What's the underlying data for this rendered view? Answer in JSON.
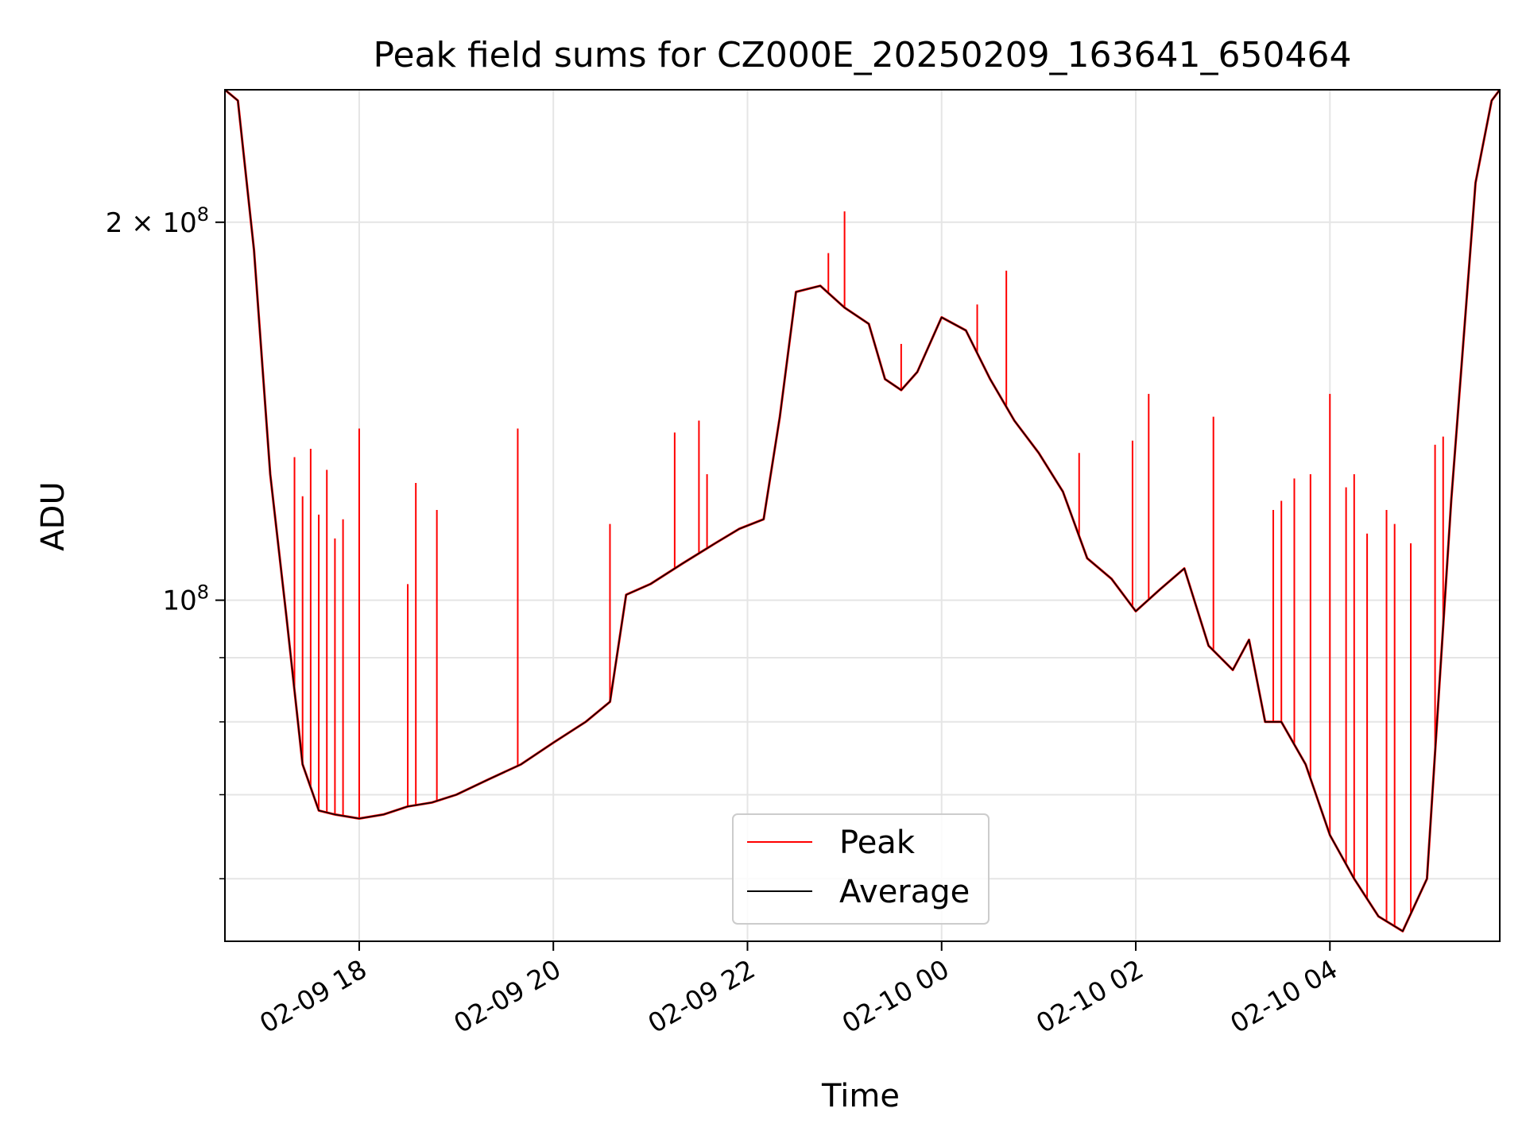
{
  "chart_data": {
    "type": "line",
    "title": "Peak field sums for CZ000E_20250209_163641_650464",
    "xlabel": "Time",
    "ylabel": "ADU",
    "y_scale": "log",
    "ylim": [
      53500000,
      255000000
    ],
    "xlim": [
      "2025-02-09 16:37",
      "2025-02-10 05:45"
    ],
    "x_ticks": [
      {
        "t": "2025-02-09 18:00",
        "label": "02-09 18"
      },
      {
        "t": "2025-02-09 20:00",
        "label": "02-09 20"
      },
      {
        "t": "2025-02-09 22:00",
        "label": "02-09 22"
      },
      {
        "t": "2025-02-10 00:00",
        "label": "02-10 00"
      },
      {
        "t": "2025-02-10 02:00",
        "label": "02-10 02"
      },
      {
        "t": "2025-02-10 04:00",
        "label": "02-10 04"
      }
    ],
    "y_major_ticks": [
      {
        "value": 100000000,
        "base": "10",
        "exp": "8"
      },
      {
        "value": 200000000,
        "base": "2 × 10",
        "exp": "8"
      }
    ],
    "y_minor_ticks": [
      60000000,
      70000000,
      80000000,
      90000000
    ],
    "grid": true,
    "legend": {
      "position": "lower center",
      "entries": [
        "Peak",
        "Average"
      ]
    },
    "colors": {
      "Peak": "#ff0000",
      "Average": "#000000",
      "grid": "#e5e5e5"
    },
    "series": [
      {
        "name": "Average",
        "x": [
          "2025-02-09 16:37",
          "2025-02-09 16:45",
          "2025-02-09 16:55",
          "2025-02-09 17:05",
          "2025-02-09 17:15",
          "2025-02-09 17:25",
          "2025-02-09 17:35",
          "2025-02-09 17:45",
          "2025-02-09 18:00",
          "2025-02-09 18:15",
          "2025-02-09 18:30",
          "2025-02-09 18:45",
          "2025-02-09 19:00",
          "2025-02-09 19:20",
          "2025-02-09 19:40",
          "2025-02-09 20:00",
          "2025-02-09 20:20",
          "2025-02-09 20:35",
          "2025-02-09 20:45",
          "2025-02-09 21:00",
          "2025-02-09 21:20",
          "2025-02-09 21:40",
          "2025-02-09 21:55",
          "2025-02-09 22:10",
          "2025-02-09 22:20",
          "2025-02-09 22:30",
          "2025-02-09 22:45",
          "2025-02-09 23:00",
          "2025-02-09 23:15",
          "2025-02-09 23:25",
          "2025-02-09 23:35",
          "2025-02-09 23:45",
          "2025-02-10 00:00",
          "2025-02-10 00:15",
          "2025-02-10 00:30",
          "2025-02-10 00:45",
          "2025-02-10 01:00",
          "2025-02-10 01:15",
          "2025-02-10 01:30",
          "2025-02-10 01:45",
          "2025-02-10 02:00",
          "2025-02-10 02:15",
          "2025-02-10 02:30",
          "2025-02-10 02:45",
          "2025-02-10 03:00",
          "2025-02-10 03:10",
          "2025-02-10 03:20",
          "2025-02-10 03:30",
          "2025-02-10 03:45",
          "2025-02-10 04:00",
          "2025-02-10 04:15",
          "2025-02-10 04:30",
          "2025-02-10 04:45",
          "2025-02-10 05:00",
          "2025-02-10 05:15",
          "2025-02-10 05:30",
          "2025-02-10 05:40",
          "2025-02-10 05:45"
        ],
        "y": [
          255000000,
          250000000,
          190000000,
          126000000,
          97000000,
          74000000,
          68000000,
          67500000,
          67000000,
          67500000,
          68500000,
          69000000,
          70000000,
          72000000,
          74000000,
          77000000,
          80000000,
          83000000,
          101000000,
          103000000,
          107000000,
          111000000,
          114000000,
          116000000,
          140000000,
          176000000,
          178000000,
          171000000,
          166000000,
          150000000,
          147000000,
          152000000,
          168000000,
          164000000,
          150000000,
          139000000,
          131000000,
          122000000,
          108000000,
          104000000,
          98000000,
          102000000,
          106000000,
          92000000,
          88000000,
          93000000,
          80000000,
          80000000,
          74000000,
          65000000,
          60000000,
          56000000,
          54500000,
          60000000,
          120000000,
          215000000,
          250000000,
          255000000
        ]
      },
      {
        "name": "Peak",
        "x": [
          "2025-02-09 17:20",
          "2025-02-09 17:25",
          "2025-02-09 17:30",
          "2025-02-09 17:35",
          "2025-02-09 17:40",
          "2025-02-09 17:45",
          "2025-02-09 17:50",
          "2025-02-09 18:00",
          "2025-02-09 18:30",
          "2025-02-09 18:35",
          "2025-02-09 18:48",
          "2025-02-09 19:38",
          "2025-02-09 20:35",
          "2025-02-09 21:15",
          "2025-02-09 21:30",
          "2025-02-09 21:35",
          "2025-02-09 22:50",
          "2025-02-09 23:00",
          "2025-02-09 23:35",
          "2025-02-10 00:22",
          "2025-02-10 00:40",
          "2025-02-10 01:25",
          "2025-02-10 01:58",
          "2025-02-10 02:08",
          "2025-02-10 02:48",
          "2025-02-10 03:25",
          "2025-02-10 03:30",
          "2025-02-10 03:38",
          "2025-02-10 03:48",
          "2025-02-10 04:00",
          "2025-02-10 04:10",
          "2025-02-10 04:15",
          "2025-02-10 04:23",
          "2025-02-10 04:35",
          "2025-02-10 04:40",
          "2025-02-10 04:50",
          "2025-02-10 05:05",
          "2025-02-10 05:10"
        ],
        "y": [
          130000000,
          121000000,
          132000000,
          117000000,
          127000000,
          112000000,
          116000000,
          137000000,
          103000000,
          124000000,
          118000000,
          137000000,
          115000000,
          136000000,
          139000000,
          126000000,
          189000000,
          204000000,
          160000000,
          172000000,
          183000000,
          131000000,
          134000000,
          146000000,
          140000000,
          118000000,
          120000000,
          125000000,
          126000000,
          146000000,
          123000000,
          126000000,
          113000000,
          118000000,
          115000000,
          111000000,
          133000000,
          135000000
        ]
      }
    ]
  }
}
